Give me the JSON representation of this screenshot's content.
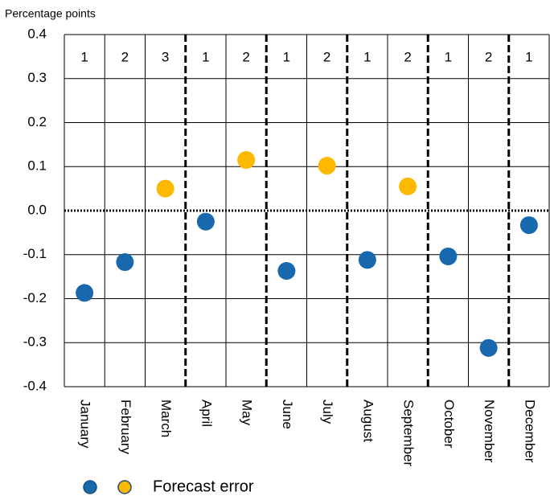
{
  "chart_data": {
    "type": "scatter",
    "y_axis_label": "Percentage points",
    "categories": [
      "January",
      "February",
      "March",
      "April",
      "May",
      "June",
      "July",
      "August",
      "September",
      "October",
      "November",
      "December"
    ],
    "row_labels": [
      1,
      2,
      3,
      1,
      2,
      1,
      2,
      1,
      2,
      1,
      2,
      1
    ],
    "series": [
      {
        "name": "Forecast error",
        "values": [
          -0.187,
          -0.117,
          0.05,
          -0.025,
          0.115,
          -0.137,
          0.102,
          -0.112,
          0.055,
          -0.104,
          -0.312,
          -0.033
        ],
        "colors": [
          "#1768ac",
          "#1768ac",
          "#fcb900",
          "#1768ac",
          "#fcb900",
          "#1768ac",
          "#fcb900",
          "#1768ac",
          "#fcb900",
          "#1768ac",
          "#1768ac",
          "#1768ac"
        ]
      }
    ],
    "ylim": [
      -0.4,
      0.4
    ],
    "yticks": [
      -0.4,
      -0.3,
      -0.2,
      -0.1,
      {
        "value": 0,
        "label": "0.0"
      },
      0.1,
      0.2,
      0.3,
      0.4
    ],
    "grid": true
  }
}
